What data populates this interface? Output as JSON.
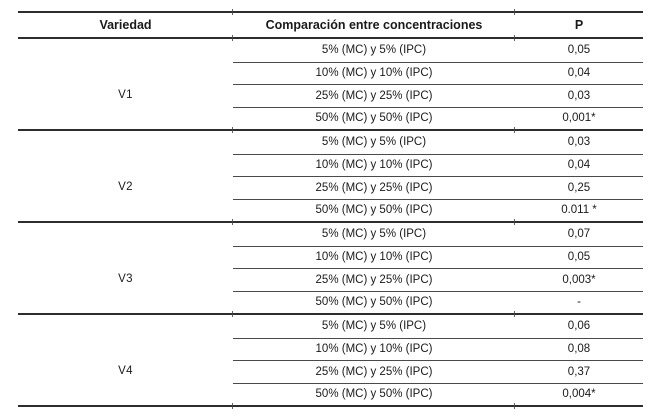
{
  "table": {
    "columns": [
      "Variedad",
      "Comparación entre concentraciones",
      "P"
    ],
    "blocks": [
      {
        "variety": "V1",
        "rows": [
          {
            "comparison": "5% (MC) y 5% (IPC)",
            "p": "0,05"
          },
          {
            "comparison": "10% (MC) y 10% (IPC)",
            "p": "0,04"
          },
          {
            "comparison": "25% (MC) y 25% (IPC)",
            "p": "0,03"
          },
          {
            "comparison": "50% (MC) y 50% (IPC)",
            "p": "0,001*"
          }
        ]
      },
      {
        "variety": "V2",
        "rows": [
          {
            "comparison": "5% (MC) y 5% (IPC)",
            "p": "0,03"
          },
          {
            "comparison": "10% (MC) y 10% (IPC)",
            "p": "0,04"
          },
          {
            "comparison": "25% (MC) y 25% (IPC)",
            "p": "0,25"
          },
          {
            "comparison": "50% (MC) y 50% (IPC)",
            "p": "0.011 *"
          }
        ]
      },
      {
        "variety": "V3",
        "rows": [
          {
            "comparison": "5% (MC) y 5% (IPC)",
            "p": "0,07"
          },
          {
            "comparison": "10% (MC) y 10% (IPC)",
            "p": "0,05"
          },
          {
            "comparison": "25% (MC) y 25% (IPC)",
            "p": "0,003*"
          },
          {
            "comparison": "50% (MC) y 50% (IPC)",
            "p": "-"
          }
        ]
      },
      {
        "variety": "V4",
        "rows": [
          {
            "comparison": "5% (MC) y 5% (IPC)",
            "p": "0,06"
          },
          {
            "comparison": "10% (MC) y 10% (IPC)",
            "p": "0,08"
          },
          {
            "comparison": "25% (MC) y 25% (IPC)",
            "p": "0,37"
          },
          {
            "comparison": "50% (MC) y 50% (IPC)",
            "p": "0,004*"
          }
        ]
      }
    ]
  },
  "colors": {
    "background": "#ffffff",
    "text": "#1a1a1a",
    "rule_thick": "#2d2d2d",
    "rule_thin": "#4a4a4a"
  }
}
